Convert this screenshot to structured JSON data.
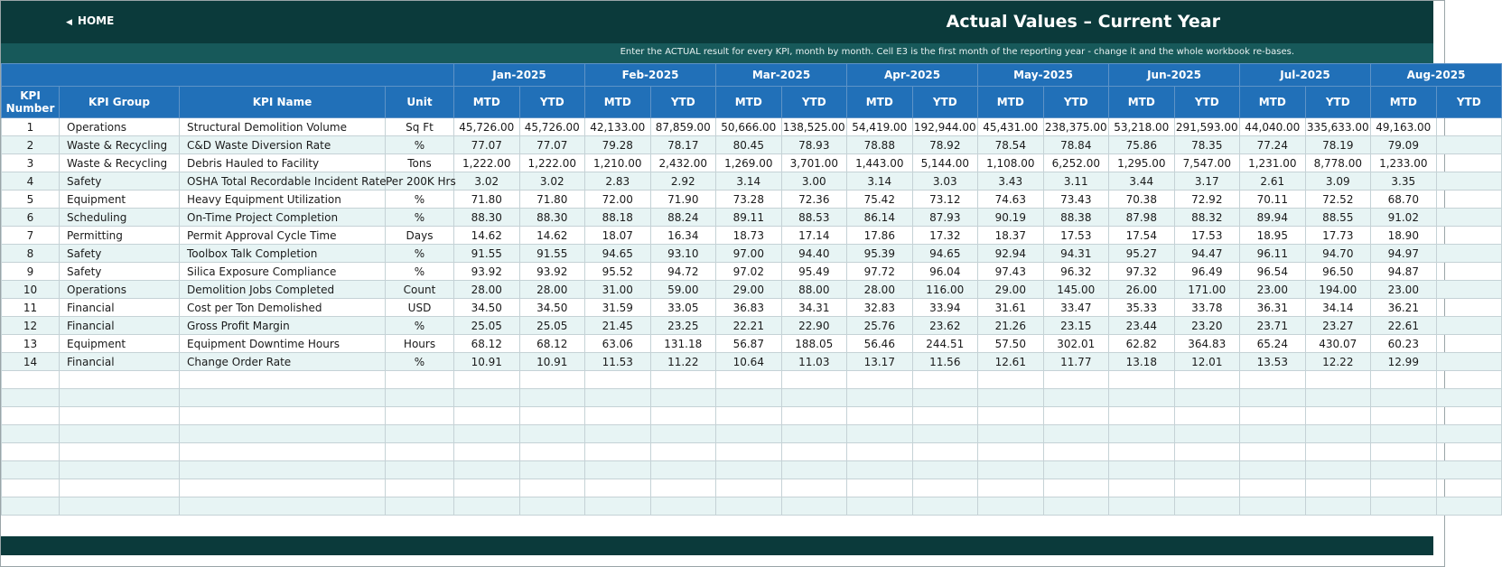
{
  "header": {
    "home": "HOME",
    "title": "Actual Values  –  Current Year",
    "instructions": "Enter the ACTUAL result for every KPI, month by month. Cell E3 is the first month of the reporting year - change it and the whole workbook re-bases."
  },
  "table": {
    "column_headers": [
      "KPI Number",
      "KPI Group",
      "KPI Name",
      "Unit"
    ],
    "months": [
      "Jan-2025",
      "Feb-2025",
      "Mar-2025",
      "Apr-2025",
      "May-2025",
      "Jun-2025",
      "Jul-2025",
      "Aug-2025"
    ],
    "period_labels": [
      "MTD",
      "YTD"
    ],
    "rows": [
      [
        1,
        "Operations",
        "Structural Demolition Volume",
        "Sq Ft",
        "45,726.00",
        "45,726.00",
        "42,133.00",
        "87,859.00",
        "50,666.00",
        "138,525.00",
        "54,419.00",
        "192,944.00",
        "45,431.00",
        "238,375.00",
        "53,218.00",
        "291,593.00",
        "44,040.00",
        "335,633.00",
        "49,163.00"
      ],
      [
        2,
        "Waste & Recycling",
        "C&D Waste Diversion Rate",
        "%",
        "77.07",
        "77.07",
        "79.28",
        "78.17",
        "80.45",
        "78.93",
        "78.88",
        "78.92",
        "78.54",
        "78.84",
        "75.86",
        "78.35",
        "77.24",
        "78.19",
        "79.09"
      ],
      [
        3,
        "Waste & Recycling",
        "Debris Hauled to Facility",
        "Tons",
        "1,222.00",
        "1,222.00",
        "1,210.00",
        "2,432.00",
        "1,269.00",
        "3,701.00",
        "1,443.00",
        "5,144.00",
        "1,108.00",
        "6,252.00",
        "1,295.00",
        "7,547.00",
        "1,231.00",
        "8,778.00",
        "1,233.00"
      ],
      [
        4,
        "Safety",
        "OSHA Total Recordable Incident Rate",
        "Per 200K Hrs",
        "3.02",
        "3.02",
        "2.83",
        "2.92",
        "3.14",
        "3.00",
        "3.14",
        "3.03",
        "3.43",
        "3.11",
        "3.44",
        "3.17",
        "2.61",
        "3.09",
        "3.35"
      ],
      [
        5,
        "Equipment",
        "Heavy Equipment Utilization",
        "%",
        "71.80",
        "71.80",
        "72.00",
        "71.90",
        "73.28",
        "72.36",
        "75.42",
        "73.12",
        "74.63",
        "73.43",
        "70.38",
        "72.92",
        "70.11",
        "72.52",
        "68.70"
      ],
      [
        6,
        "Scheduling",
        "On-Time Project Completion",
        "%",
        "88.30",
        "88.30",
        "88.18",
        "88.24",
        "89.11",
        "88.53",
        "86.14",
        "87.93",
        "90.19",
        "88.38",
        "87.98",
        "88.32",
        "89.94",
        "88.55",
        "91.02"
      ],
      [
        7,
        "Permitting",
        "Permit Approval Cycle Time",
        "Days",
        "14.62",
        "14.62",
        "18.07",
        "16.34",
        "18.73",
        "17.14",
        "17.86",
        "17.32",
        "18.37",
        "17.53",
        "17.54",
        "17.53",
        "18.95",
        "17.73",
        "18.90"
      ],
      [
        8,
        "Safety",
        "Toolbox Talk Completion",
        "%",
        "91.55",
        "91.55",
        "94.65",
        "93.10",
        "97.00",
        "94.40",
        "95.39",
        "94.65",
        "92.94",
        "94.31",
        "95.27",
        "94.47",
        "96.11",
        "94.70",
        "94.97"
      ],
      [
        9,
        "Safety",
        "Silica Exposure Compliance",
        "%",
        "93.92",
        "93.92",
        "95.52",
        "94.72",
        "97.02",
        "95.49",
        "97.72",
        "96.04",
        "97.43",
        "96.32",
        "97.32",
        "96.49",
        "96.54",
        "96.50",
        "94.87"
      ],
      [
        10,
        "Operations",
        "Demolition Jobs Completed",
        "Count",
        "28.00",
        "28.00",
        "31.00",
        "59.00",
        "29.00",
        "88.00",
        "28.00",
        "116.00",
        "29.00",
        "145.00",
        "26.00",
        "171.00",
        "23.00",
        "194.00",
        "23.00"
      ],
      [
        11,
        "Financial",
        "Cost per Ton Demolished",
        "USD",
        "34.50",
        "34.50",
        "31.59",
        "33.05",
        "36.83",
        "34.31",
        "32.83",
        "33.94",
        "31.61",
        "33.47",
        "35.33",
        "33.78",
        "36.31",
        "34.14",
        "36.21"
      ],
      [
        12,
        "Financial",
        "Gross Profit Margin",
        "%",
        "25.05",
        "25.05",
        "21.45",
        "23.25",
        "22.21",
        "22.90",
        "25.76",
        "23.62",
        "21.26",
        "23.15",
        "23.44",
        "23.20",
        "23.71",
        "23.27",
        "22.61"
      ],
      [
        13,
        "Equipment",
        "Equipment Downtime Hours",
        "Hours",
        "68.12",
        "68.12",
        "63.06",
        "131.18",
        "56.87",
        "188.05",
        "56.46",
        "244.51",
        "57.50",
        "302.01",
        "62.82",
        "364.83",
        "65.24",
        "430.07",
        "60.23"
      ],
      [
        14,
        "Financial",
        "Change Order Rate",
        "%",
        "10.91",
        "10.91",
        "11.53",
        "11.22",
        "10.64",
        "11.03",
        "13.17",
        "11.56",
        "12.61",
        "11.77",
        "13.18",
        "12.01",
        "13.53",
        "12.22",
        "12.99"
      ]
    ]
  }
}
